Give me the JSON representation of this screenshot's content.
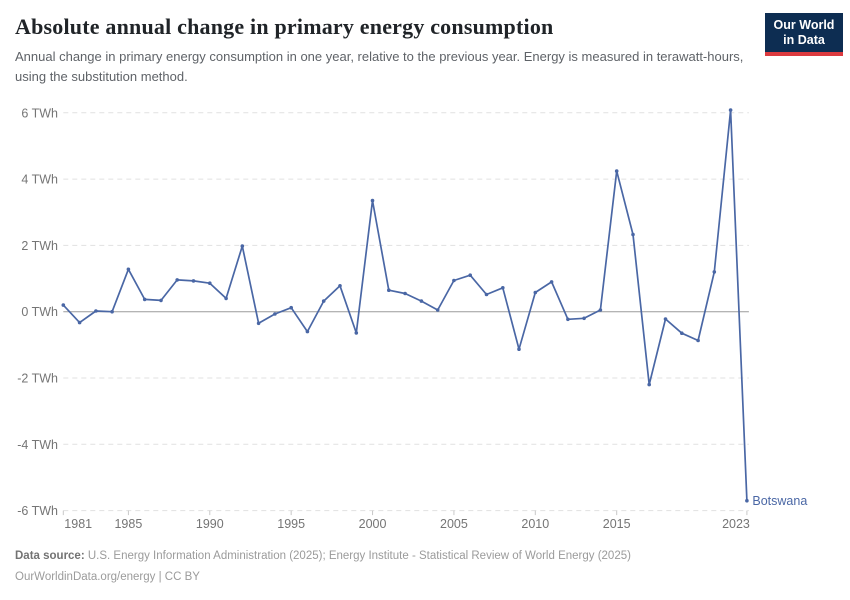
{
  "header": {
    "title": "Absolute annual change in primary energy consumption",
    "subtitle": "Annual change in primary energy consumption in one year, relative to the previous year. Energy is measured in terawatt-hours, using the substitution method."
  },
  "logo": {
    "line1": "Our World",
    "line2": "in Data",
    "bg_color": "#0d2d52",
    "bar_color": "#dc3a3f"
  },
  "chart_data": {
    "type": "line",
    "title": "Absolute annual change in primary energy consumption",
    "unit": "TWh",
    "xlabel": "",
    "ylabel": "",
    "xlim": [
      1981,
      2023
    ],
    "ylim": [
      -6,
      6
    ],
    "grid": "horizontal-dashed",
    "zero_line": true,
    "legend_position": "line-end",
    "x": [
      1981,
      1982,
      1983,
      1984,
      1985,
      1986,
      1987,
      1988,
      1989,
      1990,
      1991,
      1992,
      1993,
      1994,
      1995,
      1996,
      1997,
      1998,
      1999,
      2000,
      2001,
      2002,
      2003,
      2004,
      2005,
      2006,
      2007,
      2008,
      2009,
      2010,
      2011,
      2012,
      2013,
      2014,
      2015,
      2016,
      2017,
      2018,
      2019,
      2020,
      2021,
      2022,
      2023
    ],
    "series": [
      {
        "name": "Botswana",
        "color": "#4a67a5",
        "values": [
          0.2,
          -0.33,
          0.02,
          0.0,
          1.28,
          0.37,
          0.34,
          0.96,
          0.93,
          0.86,
          0.4,
          1.98,
          -0.35,
          -0.07,
          0.12,
          -0.6,
          0.32,
          0.78,
          -0.64,
          3.35,
          0.65,
          0.55,
          0.32,
          0.05,
          0.94,
          1.1,
          0.52,
          0.72,
          -1.13,
          0.58,
          0.9,
          -0.23,
          -0.2,
          0.05,
          4.24,
          2.33,
          -2.2,
          -0.22,
          -0.65,
          -0.87,
          1.2,
          6.08,
          -5.7
        ]
      }
    ],
    "yticks": [
      6,
      4,
      2,
      0,
      -2,
      -4,
      -6
    ],
    "ytick_labels": [
      "6 TWh",
      "4 TWh",
      "2 TWh",
      "0 TWh",
      "-2 TWh",
      "-4 TWh",
      "-6 TWh"
    ],
    "xticks": [
      1981,
      1985,
      1990,
      1995,
      2000,
      2005,
      2010,
      2015,
      2023
    ],
    "xtick_labels": [
      "1981",
      "1985",
      "1990",
      "1995",
      "2000",
      "2005",
      "2010",
      "2015",
      "2023"
    ]
  },
  "colors": {
    "grid": "#e1e1e1",
    "zero_line": "#9b9b9b",
    "tick_text": "#757575",
    "axis_tick": "#c8c8c8"
  },
  "footer": {
    "source_label": "Data source:",
    "source_text": " U.S. Energy Information Administration (2025); Energy Institute - Statistical Review of World Energy (2025)",
    "license_line": "OurWorldinData.org/energy | CC BY"
  }
}
